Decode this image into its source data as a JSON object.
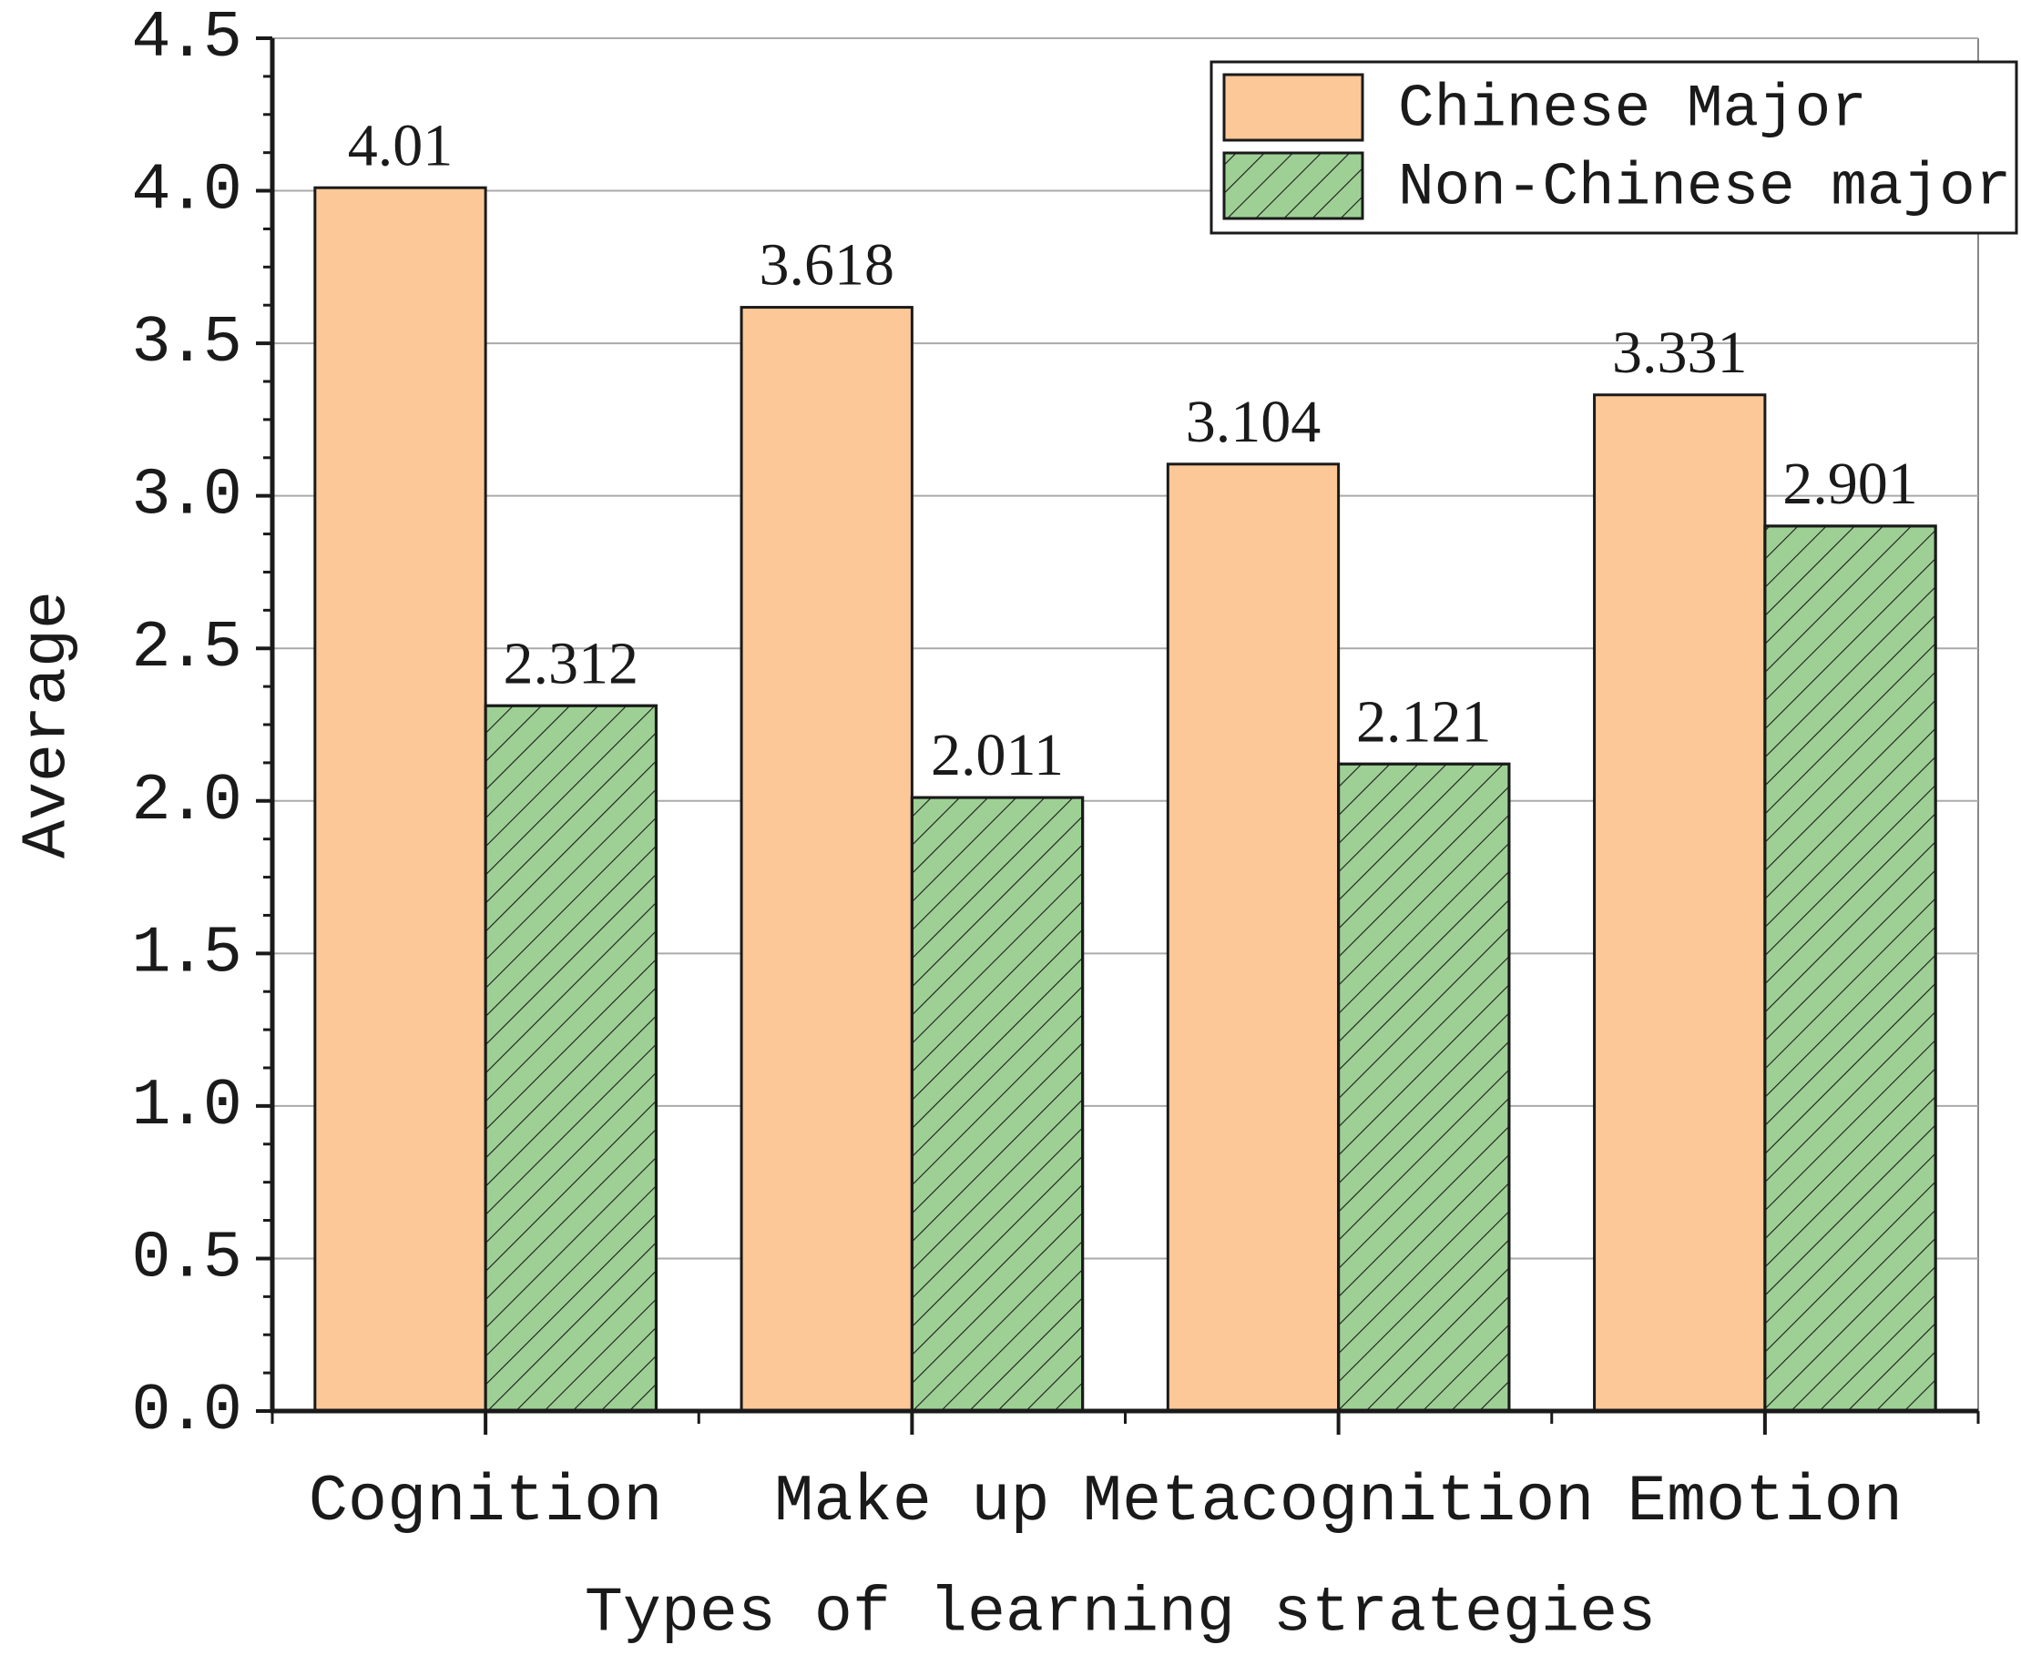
{
  "chart_data": {
    "type": "bar",
    "x_label": "Types of learning strategies",
    "y_label": "Average",
    "categories": [
      "Cognition",
      "Make up",
      "Metacognition",
      "Emotion"
    ],
    "series": [
      {
        "name": "Chinese Major",
        "color": "#fdc897",
        "values": [
          4.01,
          3.618,
          3.104,
          3.331
        ]
      },
      {
        "name": "Non-Chinese major",
        "color": "#9ed095",
        "hatch": true,
        "values": [
          2.312,
          2.011,
          2.121,
          2.901
        ]
      }
    ],
    "ylim": [
      0,
      4.5
    ],
    "yticks": [
      {
        "value": 0,
        "label": "0.0"
      },
      0.5,
      {
        "value": 1,
        "label": "1.0"
      },
      1.5,
      {
        "value": 2,
        "label": "2.0"
      },
      2.5,
      {
        "value": 3,
        "label": "3.0"
      },
      3.5,
      {
        "value": 4,
        "label": "4.0"
      },
      4.5
    ],
    "grid": true,
    "legend": "upper right"
  }
}
